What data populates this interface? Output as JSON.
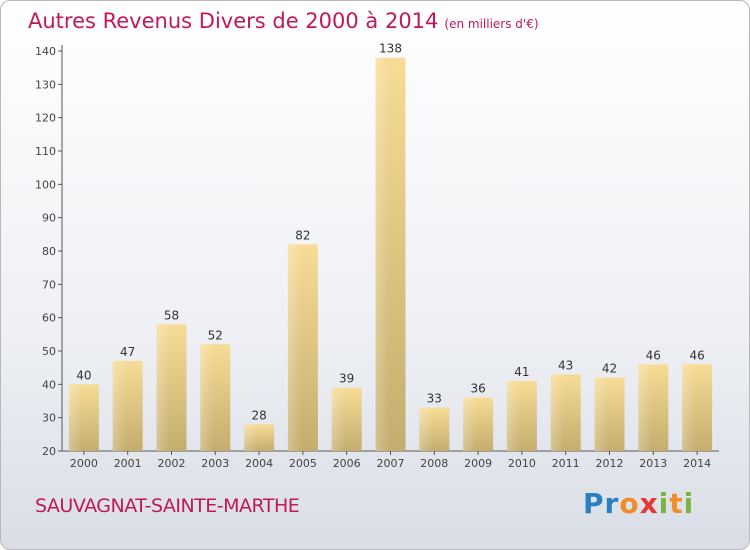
{
  "chart_data": {
    "type": "bar",
    "title": "Autres Revenus Divers de 2000 à 2014",
    "unit_label": "(en milliers d'€)",
    "categories": [
      "2000",
      "2001",
      "2002",
      "2003",
      "2004",
      "2005",
      "2006",
      "2007",
      "2008",
      "2009",
      "2010",
      "2011",
      "2012",
      "2013",
      "2014"
    ],
    "values": [
      40,
      47,
      58,
      52,
      28,
      82,
      39,
      138,
      33,
      36,
      41,
      43,
      42,
      46,
      46
    ],
    "ylim": [
      20,
      140
    ],
    "yticks": [
      20,
      30,
      40,
      50,
      60,
      70,
      80,
      90,
      100,
      110,
      120,
      130,
      140
    ],
    "grid": false,
    "bar_color_light": "#f7dc96",
    "bar_color_dark": "#c4ad6e"
  },
  "commune": "SAUVAGNAT-SAINTE-MARTHE",
  "logo": {
    "letters": [
      "P",
      "r",
      "o",
      "x",
      "i",
      "t",
      "i"
    ],
    "colors": [
      "#2a7fc0",
      "#2a7fc0",
      "#f28c28",
      "#e53935",
      "#7cb342",
      "#f28c28",
      "#7cb342"
    ]
  }
}
